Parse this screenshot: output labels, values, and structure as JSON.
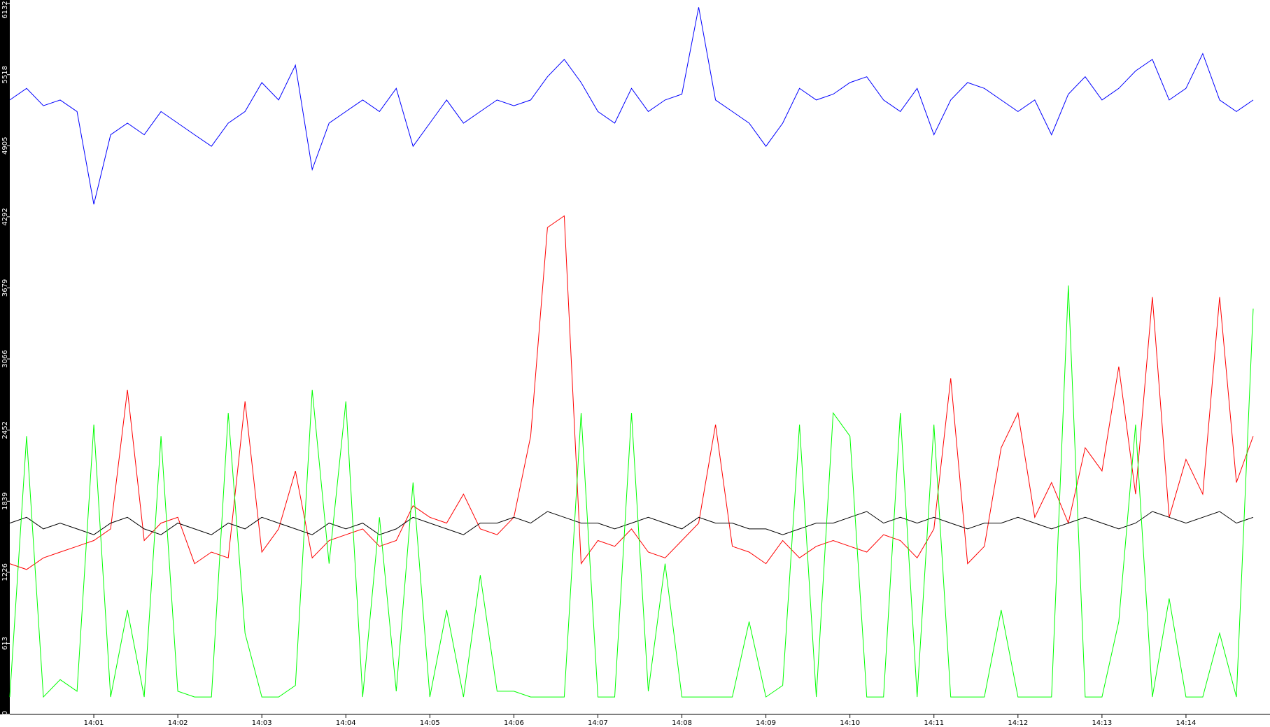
{
  "chart_data": {
    "type": "line",
    "x": [
      0,
      0.2,
      0.4,
      0.6,
      0.8,
      1,
      1.2,
      1.4,
      1.6,
      1.8,
      2,
      2.2,
      2.4,
      2.6,
      2.8,
      3,
      3.2,
      3.4,
      3.6,
      3.8,
      4,
      4.2,
      4.4,
      4.6,
      4.8,
      5,
      5.2,
      5.4,
      5.6,
      5.8,
      6,
      6.2,
      6.4,
      6.6,
      6.8,
      7,
      7.2,
      7.4,
      7.6,
      7.8,
      8,
      8.2,
      8.4,
      8.6,
      8.8,
      9,
      9.2,
      9.4,
      9.6,
      9.8,
      10,
      10.2,
      10.4,
      10.6,
      10.8,
      11,
      11.2,
      11.4,
      11.6,
      11.8,
      12,
      12.2,
      12.4,
      12.6,
      12.8,
      13,
      13.2,
      13.4,
      13.6,
      13.8,
      14,
      14.2,
      14.4,
      14.6,
      14.8
    ],
    "series": [
      {
        "color": "#0000ff",
        "values": [
          5300,
          5400,
          5250,
          5300,
          5200,
          4400,
          5000,
          5100,
          5000,
          5200,
          5100,
          5000,
          4900,
          5100,
          5200,
          5450,
          5300,
          5600,
          4700,
          5100,
          5200,
          5300,
          5200,
          5400,
          4900,
          5100,
          5300,
          5100,
          5200,
          5300,
          5250,
          5300,
          5500,
          5650,
          5450,
          5200,
          5100,
          5400,
          5200,
          5300,
          5350,
          6100,
          5300,
          5200,
          5100,
          4900,
          5100,
          5400,
          5300,
          5350,
          5450,
          5500,
          5300,
          5200,
          5400,
          5000,
          5300,
          5450,
          5400,
          5300,
          5200,
          5300,
          5000,
          5350,
          5500,
          5300,
          5400,
          5550,
          5650,
          5300,
          5400,
          5700,
          5300,
          5200,
          5300
        ]
      },
      {
        "color": "#ff0000",
        "values": [
          1300,
          1250,
          1350,
          1400,
          1450,
          1500,
          1600,
          2800,
          1500,
          1650,
          1700,
          1300,
          1400,
          1350,
          2700,
          1400,
          1600,
          2100,
          1350,
          1500,
          1550,
          1600,
          1450,
          1500,
          1800,
          1700,
          1650,
          1900,
          1600,
          1550,
          1700,
          2400,
          4200,
          4300,
          1300,
          1500,
          1450,
          1600,
          1400,
          1350,
          1500,
          1650,
          2500,
          1450,
          1400,
          1300,
          1500,
          1350,
          1450,
          1500,
          1450,
          1400,
          1550,
          1500,
          1350,
          1600,
          2900,
          1300,
          1450,
          2300,
          2600,
          1700,
          2000,
          1650,
          2300,
          2100,
          3000,
          1900,
          3600,
          1700,
          2200,
          1900,
          3600,
          2000,
          2400
        ]
      },
      {
        "color": "#000000",
        "values": [
          1650,
          1700,
          1600,
          1650,
          1600,
          1550,
          1650,
          1700,
          1600,
          1550,
          1650,
          1600,
          1550,
          1650,
          1600,
          1700,
          1650,
          1600,
          1550,
          1650,
          1600,
          1650,
          1550,
          1600,
          1700,
          1650,
          1600,
          1550,
          1650,
          1650,
          1700,
          1650,
          1750,
          1700,
          1650,
          1650,
          1600,
          1650,
          1700,
          1650,
          1600,
          1700,
          1650,
          1650,
          1600,
          1600,
          1550,
          1600,
          1650,
          1650,
          1700,
          1750,
          1650,
          1700,
          1650,
          1700,
          1650,
          1600,
          1650,
          1650,
          1700,
          1650,
          1600,
          1650,
          1700,
          1650,
          1600,
          1650,
          1750,
          1700,
          1650,
          1700,
          1750,
          1650,
          1700
        ]
      },
      {
        "color": "#00ff00",
        "values": [
          150,
          2400,
          150,
          300,
          200,
          2500,
          150,
          900,
          150,
          2400,
          200,
          150,
          150,
          2600,
          700,
          150,
          150,
          250,
          2800,
          1300,
          2700,
          150,
          1700,
          200,
          2000,
          150,
          900,
          150,
          1200,
          200,
          200,
          150,
          150,
          150,
          2600,
          150,
          150,
          2600,
          200,
          1300,
          150,
          150,
          150,
          150,
          800,
          150,
          250,
          2500,
          150,
          2600,
          2400,
          150,
          150,
          2600,
          150,
          2500,
          150,
          150,
          150,
          900,
          150,
          150,
          150,
          3700,
          150,
          150,
          800,
          2500,
          150,
          1000,
          150,
          150,
          700,
          150,
          3500
        ]
      }
    ],
    "xlim": [
      0,
      15
    ],
    "xticks": [
      {
        "value": 1,
        "label": "14:01"
      },
      {
        "value": 2,
        "label": "14:02"
      },
      {
        "value": 3,
        "label": "14:03"
      },
      {
        "value": 4,
        "label": "14:04"
      },
      {
        "value": 5,
        "label": "14:05"
      },
      {
        "value": 6,
        "label": "14:06"
      },
      {
        "value": 7,
        "label": "14:07"
      },
      {
        "value": 8,
        "label": "14:08"
      },
      {
        "value": 9,
        "label": "14:09"
      },
      {
        "value": 10,
        "label": "14:10"
      },
      {
        "value": 11,
        "label": "14:11"
      },
      {
        "value": 12,
        "label": "14:12"
      },
      {
        "value": 13,
        "label": "14:13"
      },
      {
        "value": 14,
        "label": "14:14"
      }
    ],
    "ylim": [
      0,
      6132
    ],
    "yticks": [
      0,
      613,
      1226,
      1839,
      2452,
      3066,
      3679,
      4292,
      4905,
      5518,
      6132
    ]
  }
}
